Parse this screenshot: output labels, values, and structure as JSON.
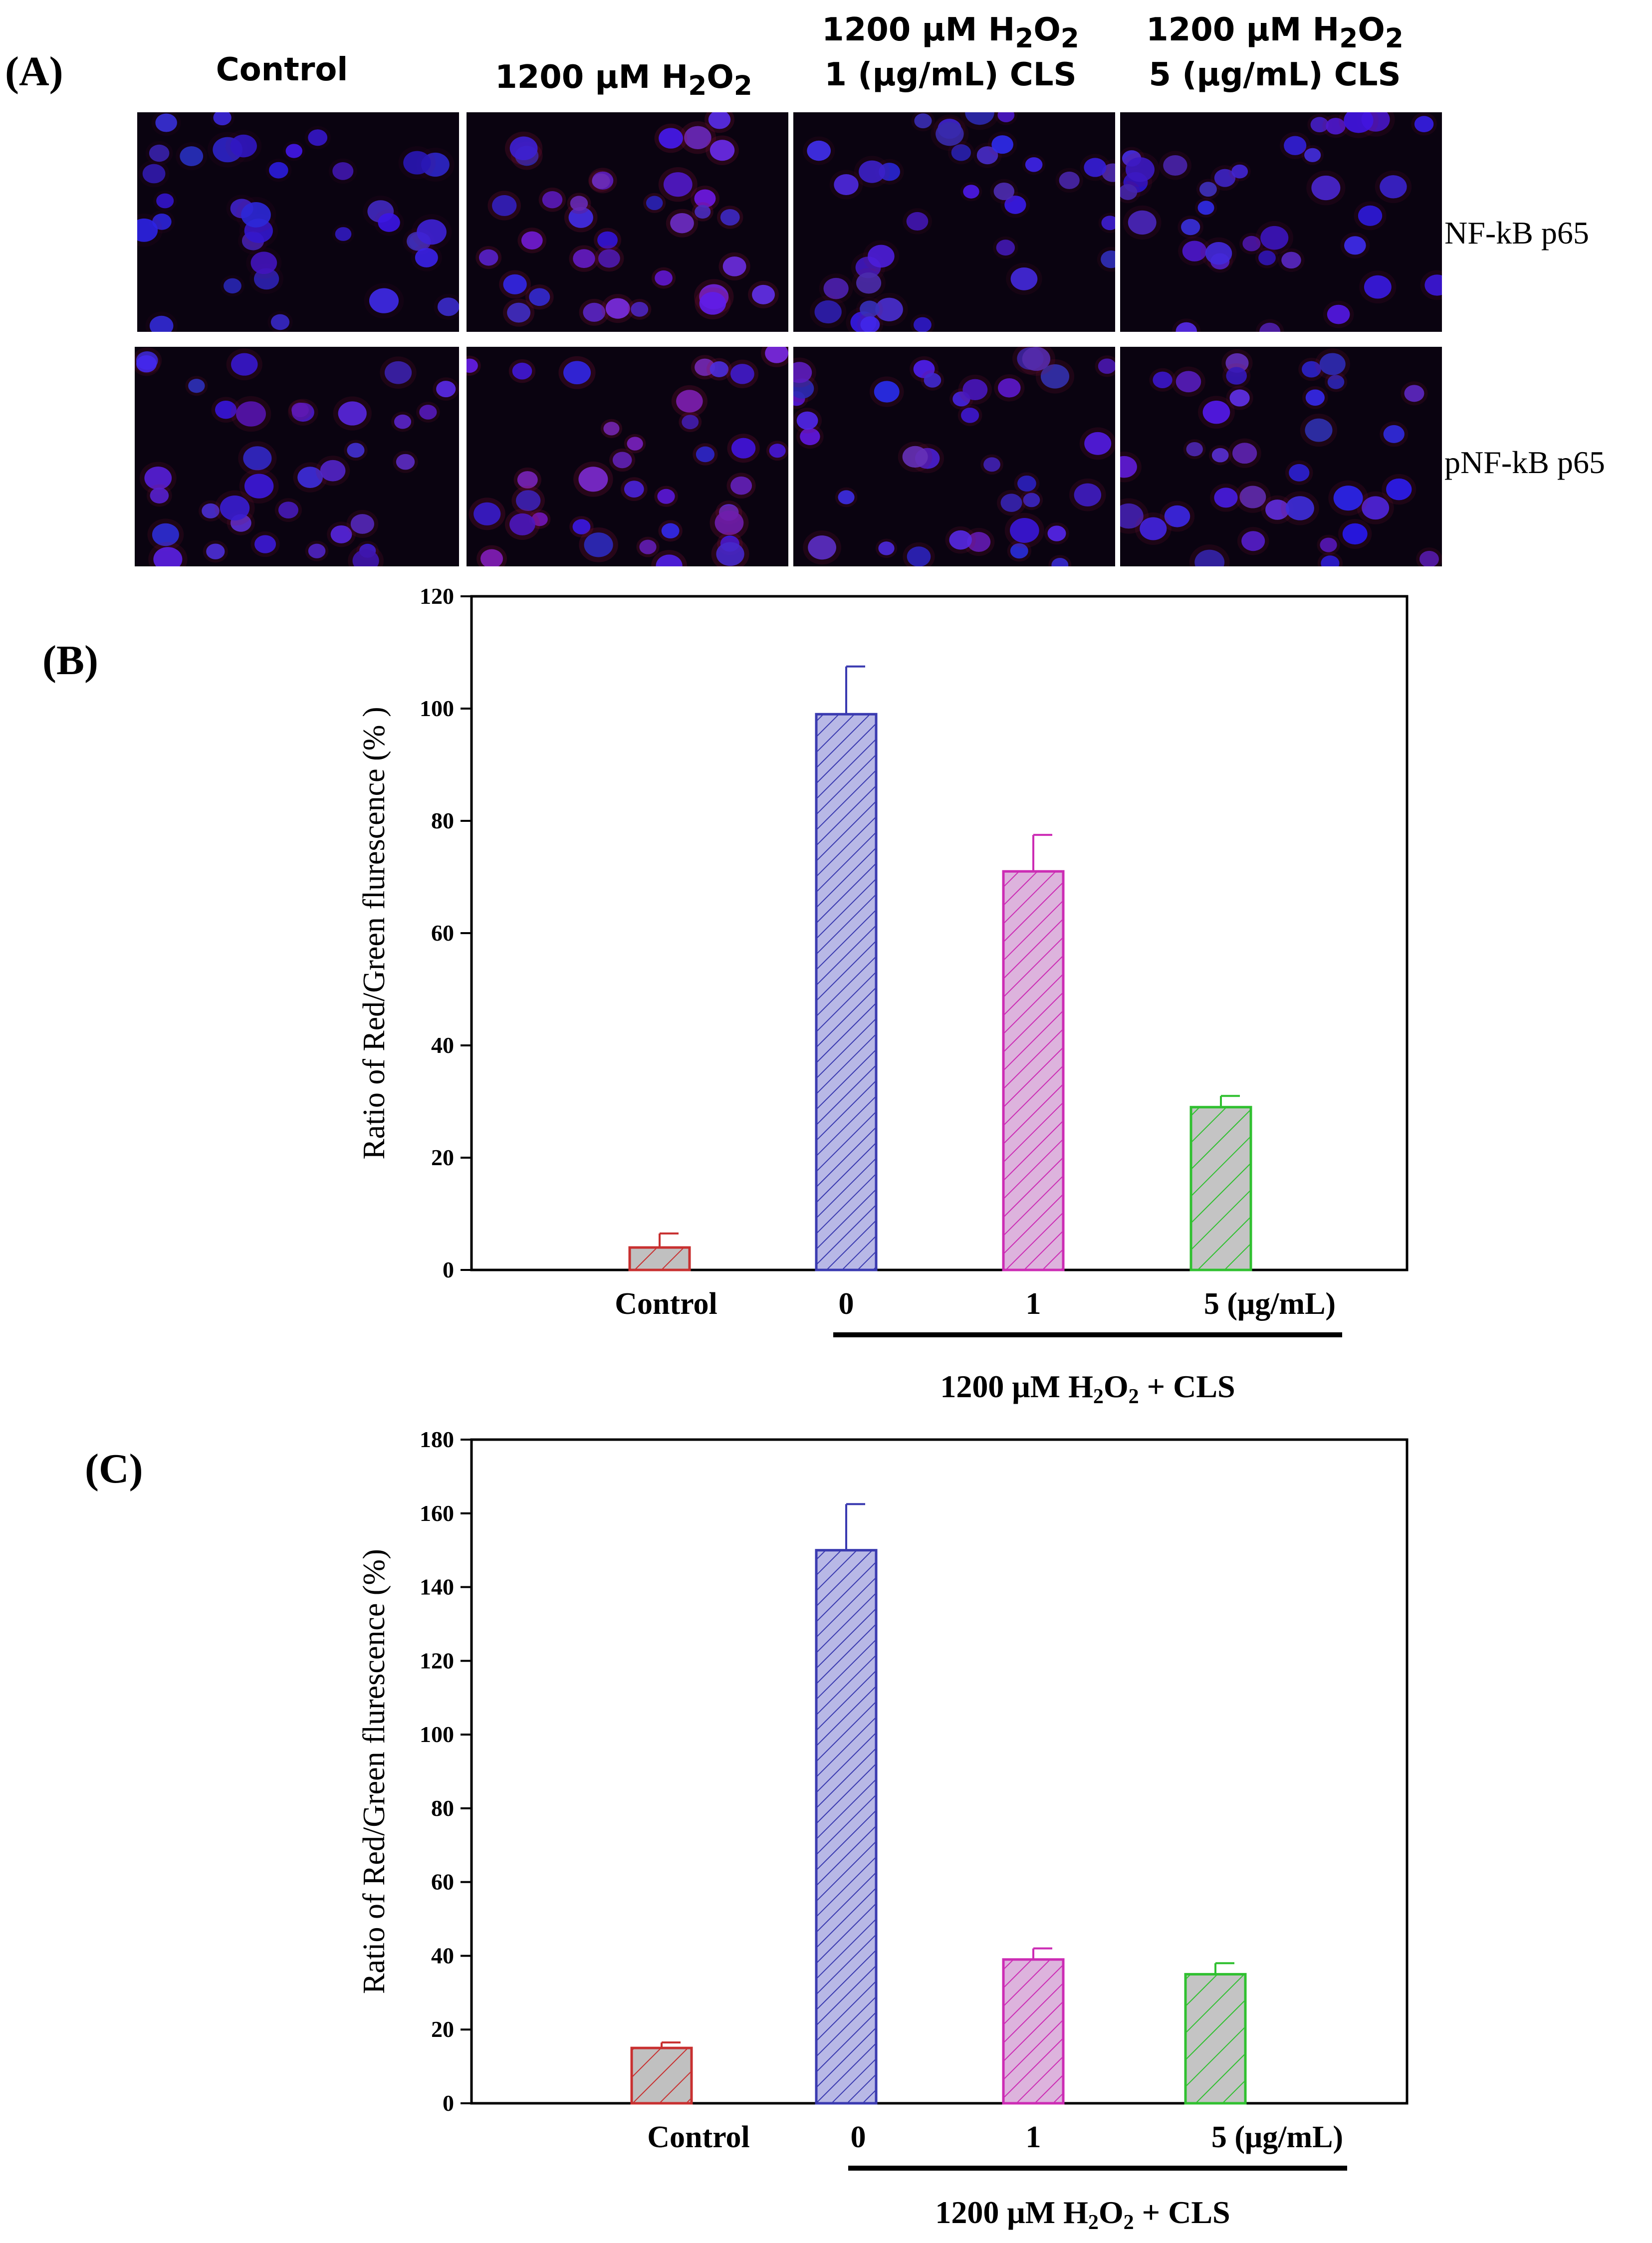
{
  "panel_a": {
    "label": "(A)",
    "columns": [
      "Control",
      "1200 μM H2O2",
      "1200 μM H2O2\n1 (μg/mL) CLS",
      "1200 μM H2O2\n5 (μg/mL) CLS"
    ],
    "rows": [
      "NF-kB p65",
      "pNF-kB p65"
    ]
  },
  "chart_data": [
    {
      "panel_label": "(B)",
      "type": "bar",
      "categories": [
        "Control",
        "0",
        "1",
        "5 (μg/mL)"
      ],
      "values": [
        4,
        99,
        71,
        29
      ],
      "errors": [
        2.5,
        8.5,
        6.5,
        2
      ],
      "ylabel": "Ratio of Red/Green flurescence  (% )",
      "group_label": "1200 μM H2O2 + CLS",
      "ylim": [
        0,
        120
      ],
      "yticks": [
        0,
        20,
        40,
        60,
        80,
        100,
        120
      ],
      "bar_colors": [
        "#c83030",
        "#3a3ab0",
        "#cc2cb4",
        "#30c030"
      ],
      "bar_fills": [
        "#c0c0c0",
        "#b8b8e6",
        "#ddb3dd",
        "#c4c4c4"
      ],
      "grid": false
    },
    {
      "panel_label": "(C)",
      "type": "bar",
      "categories": [
        "Control",
        "0",
        "1",
        "5 (μg/mL)"
      ],
      "values": [
        15,
        150,
        39,
        35
      ],
      "errors": [
        1.5,
        12.5,
        3,
        3
      ],
      "ylabel": "Ratio of Red/Green flurescence (%)",
      "group_label": "1200 μM H2O2 + CLS",
      "ylim": [
        0,
        180
      ],
      "yticks": [
        0,
        20,
        40,
        60,
        80,
        100,
        120,
        140,
        160,
        180
      ],
      "bar_colors": [
        "#c83030",
        "#3a3ab0",
        "#cc2cb4",
        "#30c030"
      ],
      "bar_fills": [
        "#c0c0c0",
        "#b8b8e6",
        "#ddb3dd",
        "#c4c4c4"
      ],
      "grid": false
    }
  ]
}
